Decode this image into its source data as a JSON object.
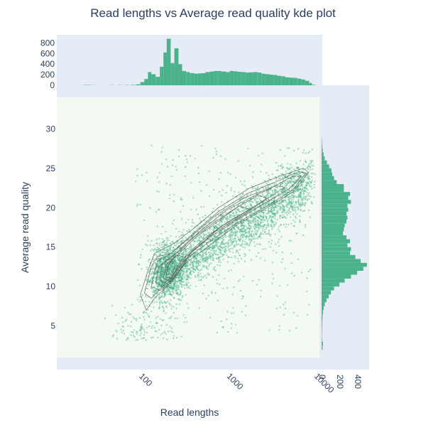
{
  "chart_data": {
    "type": "scatter",
    "title": "Read lengths vs Average read quality kde plot",
    "xlabel": "Read lengths",
    "ylabel": "Average read quality",
    "x_scale": "log",
    "x_range": [
      10,
      10000
    ],
    "y_range": [
      1,
      34
    ],
    "x_tick_labels": [
      "100",
      "1000",
      "10000"
    ],
    "y_tick_labels": [
      "5",
      "10",
      "15",
      "20",
      "25",
      "30"
    ],
    "colors": {
      "marker": "#4bb38b",
      "kde_line": "#555555",
      "main_bg": "#f3faf1",
      "marginal_bg": "#e5ecf6",
      "axis_text": "#2a3f5f"
    },
    "top_histogram": {
      "y_tick_labels": [
        "0",
        "200",
        "400",
        "600",
        "800"
      ],
      "bins": [
        {
          "x": 20,
          "count": 5
        },
        {
          "x": 22,
          "count": 6
        },
        {
          "x": 25,
          "count": 3
        },
        {
          "x": 40,
          "count": 3
        },
        {
          "x": 50,
          "count": 4
        },
        {
          "x": 60,
          "count": 6
        },
        {
          "x": 70,
          "count": 8
        },
        {
          "x": 80,
          "count": 18
        },
        {
          "x": 90,
          "count": 60
        },
        {
          "x": 100,
          "count": 120
        },
        {
          "x": 110,
          "count": 250
        },
        {
          "x": 120,
          "count": 210
        },
        {
          "x": 135,
          "count": 160
        },
        {
          "x": 150,
          "count": 350
        },
        {
          "x": 165,
          "count": 620
        },
        {
          "x": 180,
          "count": 880
        },
        {
          "x": 200,
          "count": 420
        },
        {
          "x": 220,
          "count": 700
        },
        {
          "x": 245,
          "count": 400
        },
        {
          "x": 270,
          "count": 270
        },
        {
          "x": 300,
          "count": 250
        },
        {
          "x": 330,
          "count": 230
        },
        {
          "x": 370,
          "count": 220
        },
        {
          "x": 410,
          "count": 225
        },
        {
          "x": 450,
          "count": 230
        },
        {
          "x": 500,
          "count": 250
        },
        {
          "x": 560,
          "count": 260
        },
        {
          "x": 620,
          "count": 270
        },
        {
          "x": 690,
          "count": 270
        },
        {
          "x": 760,
          "count": 260
        },
        {
          "x": 850,
          "count": 250
        },
        {
          "x": 940,
          "count": 270
        },
        {
          "x": 1050,
          "count": 265
        },
        {
          "x": 1160,
          "count": 255
        },
        {
          "x": 1290,
          "count": 250
        },
        {
          "x": 1430,
          "count": 240
        },
        {
          "x": 1590,
          "count": 245
        },
        {
          "x": 1760,
          "count": 250
        },
        {
          "x": 1960,
          "count": 240
        },
        {
          "x": 2170,
          "count": 220
        },
        {
          "x": 2410,
          "count": 210
        },
        {
          "x": 2680,
          "count": 200
        },
        {
          "x": 2980,
          "count": 195
        },
        {
          "x": 3300,
          "count": 180
        },
        {
          "x": 3660,
          "count": 170
        },
        {
          "x": 4070,
          "count": 150
        },
        {
          "x": 4520,
          "count": 145
        },
        {
          "x": 5020,
          "count": 140
        },
        {
          "x": 5570,
          "count": 125
        },
        {
          "x": 6180,
          "count": 110
        },
        {
          "x": 6860,
          "count": 85
        },
        {
          "x": 7620,
          "count": 45
        },
        {
          "x": 8200,
          "count": 10
        }
      ]
    },
    "right_histogram": {
      "x_tick_labels": [
        "0",
        "200",
        "400"
      ],
      "bins": [
        {
          "y": 2.0,
          "count": 10
        },
        {
          "y": 2.5,
          "count": 15
        },
        {
          "y": 3.0,
          "count": 5
        },
        {
          "y": 3.5,
          "count": 3
        },
        {
          "y": 4.0,
          "count": 4
        },
        {
          "y": 4.5,
          "count": 5
        },
        {
          "y": 5.0,
          "count": 6
        },
        {
          "y": 5.5,
          "count": 8
        },
        {
          "y": 6.0,
          "count": 10
        },
        {
          "y": 6.5,
          "count": 14
        },
        {
          "y": 7.0,
          "count": 22
        },
        {
          "y": 7.5,
          "count": 35
        },
        {
          "y": 8.0,
          "count": 55
        },
        {
          "y": 8.5,
          "count": 80
        },
        {
          "y": 9.0,
          "count": 105
        },
        {
          "y": 9.5,
          "count": 140
        },
        {
          "y": 10.0,
          "count": 200
        },
        {
          "y": 10.5,
          "count": 260
        },
        {
          "y": 11.0,
          "count": 330
        },
        {
          "y": 11.5,
          "count": 400
        },
        {
          "y": 12.0,
          "count": 470
        },
        {
          "y": 12.5,
          "count": 510
        },
        {
          "y": 13.0,
          "count": 440
        },
        {
          "y": 13.5,
          "count": 380
        },
        {
          "y": 14.0,
          "count": 320
        },
        {
          "y": 14.5,
          "count": 330
        },
        {
          "y": 15.0,
          "count": 290
        },
        {
          "y": 15.5,
          "count": 320
        },
        {
          "y": 16.0,
          "count": 280
        },
        {
          "y": 16.5,
          "count": 240
        },
        {
          "y": 17.0,
          "count": 250
        },
        {
          "y": 17.5,
          "count": 260
        },
        {
          "y": 18.0,
          "count": 280
        },
        {
          "y": 18.5,
          "count": 290
        },
        {
          "y": 19.0,
          "count": 280
        },
        {
          "y": 19.5,
          "count": 300
        },
        {
          "y": 20.0,
          "count": 290
        },
        {
          "y": 20.5,
          "count": 330
        },
        {
          "y": 21.0,
          "count": 300
        },
        {
          "y": 21.5,
          "count": 320
        },
        {
          "y": 22.0,
          "count": 250
        },
        {
          "y": 22.5,
          "count": 250
        },
        {
          "y": 23.0,
          "count": 170
        },
        {
          "y": 23.5,
          "count": 140
        },
        {
          "y": 24.0,
          "count": 120
        },
        {
          "y": 24.5,
          "count": 110
        },
        {
          "y": 25.0,
          "count": 85
        },
        {
          "y": 25.5,
          "count": 60
        },
        {
          "y": 26.0,
          "count": 35
        },
        {
          "y": 26.5,
          "count": 22
        },
        {
          "y": 27.0,
          "count": 12
        },
        {
          "y": 27.5,
          "count": 7
        },
        {
          "y": 28.0,
          "count": 4
        },
        {
          "y": 28.5,
          "count": 2
        }
      ]
    },
    "kde_contours": [
      {
        "level": 1,
        "points": [
          [
            90,
            9
          ],
          [
            105,
            7
          ],
          [
            130,
            8.5
          ],
          [
            180,
            10
          ],
          [
            300,
            13
          ],
          [
            600,
            15.5
          ],
          [
            1200,
            18
          ],
          [
            2500,
            20
          ],
          [
            5000,
            22
          ],
          [
            7500,
            24.5
          ],
          [
            6500,
            25
          ],
          [
            3500,
            24
          ],
          [
            1600,
            22.5
          ],
          [
            700,
            20
          ],
          [
            350,
            17.2
          ],
          [
            220,
            15.5
          ],
          [
            130,
            14.2
          ],
          [
            110,
            12
          ],
          [
            90,
            9
          ]
        ]
      },
      {
        "level": 2,
        "points": [
          [
            100,
            9.2
          ],
          [
            120,
            8.5
          ],
          [
            160,
            10
          ],
          [
            300,
            13.5
          ],
          [
            600,
            16
          ],
          [
            1200,
            18.2
          ],
          [
            2500,
            20.2
          ],
          [
            5000,
            22.3
          ],
          [
            7000,
            24.4
          ],
          [
            5800,
            24.6
          ],
          [
            3200,
            23.3
          ],
          [
            1500,
            21.8
          ],
          [
            700,
            19.5
          ],
          [
            350,
            16.6
          ],
          [
            200,
            14.2
          ],
          [
            140,
            13.8
          ],
          [
            120,
            12.5
          ],
          [
            100,
            9.2
          ]
        ]
      },
      {
        "level": 3,
        "points": [
          [
            120,
            10
          ],
          [
            150,
            9.5
          ],
          [
            200,
            10.5
          ],
          [
            300,
            13.8
          ],
          [
            600,
            16.5
          ],
          [
            1200,
            18.6
          ],
          [
            2400,
            20.6
          ],
          [
            4500,
            22.4
          ],
          [
            6200,
            24
          ],
          [
            5000,
            24
          ],
          [
            2900,
            22.6
          ],
          [
            1400,
            21.3
          ],
          [
            650,
            19
          ],
          [
            330,
            16.2
          ],
          [
            200,
            14.2
          ],
          [
            140,
            13.2
          ],
          [
            120,
            10
          ]
        ]
      },
      {
        "level": 4,
        "points": [
          [
            135,
            10.5
          ],
          [
            160,
            10
          ],
          [
            220,
            11
          ],
          [
            330,
            14.2
          ],
          [
            650,
            17
          ],
          [
            1300,
            19
          ],
          [
            2400,
            21
          ],
          [
            4000,
            22.6
          ],
          [
            3200,
            22.8
          ],
          [
            1800,
            21.5
          ],
          [
            900,
            19.8
          ],
          [
            450,
            17.2
          ],
          [
            250,
            14.5
          ],
          [
            170,
            13.2
          ],
          [
            145,
            12.4
          ],
          [
            135,
            10.5
          ]
        ]
      },
      {
        "level": 5,
        "points": [
          [
            150,
            10.8
          ],
          [
            180,
            10.4
          ],
          [
            240,
            11.6
          ],
          [
            350,
            14.4
          ],
          [
            700,
            17.4
          ],
          [
            1400,
            19.4
          ],
          [
            2500,
            21.2
          ],
          [
            2000,
            21.6
          ],
          [
            1200,
            20.2
          ],
          [
            600,
            18
          ],
          [
            320,
            15.8
          ],
          [
            210,
            13.8
          ],
          [
            160,
            12.8
          ],
          [
            150,
            10.8
          ]
        ]
      },
      {
        "level": 6,
        "points": [
          [
            165,
            11
          ],
          [
            195,
            10.8
          ],
          [
            240,
            12.4
          ],
          [
            300,
            14
          ],
          [
            500,
            16.2
          ],
          [
            900,
            18.2
          ],
          [
            1600,
            19.8
          ],
          [
            1200,
            20.2
          ],
          [
            700,
            18.3
          ],
          [
            380,
            16.2
          ],
          [
            240,
            14
          ],
          [
            180,
            12.9
          ],
          [
            165,
            11
          ]
        ]
      },
      {
        "level": 7,
        "points": [
          [
            175,
            11.2
          ],
          [
            205,
            11
          ],
          [
            240,
            12.6
          ],
          [
            280,
            13.8
          ],
          [
            230,
            14
          ],
          [
            190,
            12.8
          ],
          [
            175,
            11.2
          ]
        ]
      },
      {
        "level": 8,
        "points": [
          [
            180,
            11.6
          ],
          [
            205,
            11.5
          ],
          [
            225,
            12.6
          ],
          [
            205,
            13.3
          ],
          [
            185,
            12.6
          ],
          [
            180,
            11.6
          ]
        ]
      }
    ]
  }
}
